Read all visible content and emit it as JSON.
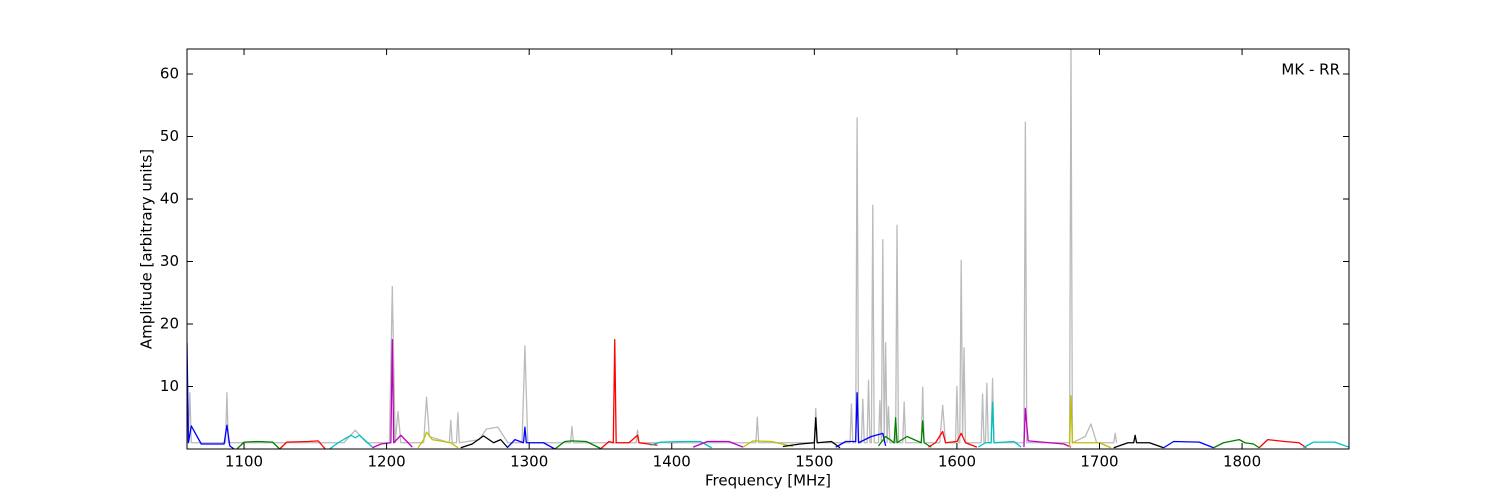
{
  "chart_data": {
    "type": "line",
    "xlabel": "Frequency [MHz]",
    "ylabel": "Amplitude [arbitrary units]",
    "annotation": "MK - RR",
    "xlim": [
      1060,
      1875
    ],
    "ylim": [
      0,
      64
    ],
    "xticks": [
      1100,
      1200,
      1300,
      1400,
      1500,
      1600,
      1700,
      1800
    ],
    "yticks": [
      10,
      20,
      30,
      40,
      50,
      60
    ],
    "series": [
      {
        "color": "#bbbbbb",
        "x": [
          1060,
          1061,
          1062,
          1063,
          1087,
          1088,
          1089,
          1170,
          1178,
          1186,
          1202,
          1204,
          1206,
          1208,
          1210,
          1226,
          1228,
          1230,
          1244,
          1245,
          1246,
          1249,
          1250,
          1251,
          1265,
          1270,
          1278,
          1285,
          1295,
          1297,
          1299,
          1329,
          1330,
          1331,
          1375,
          1376,
          1377,
          1459,
          1460,
          1461,
          1500,
          1501,
          1502,
          1525,
          1526,
          1527,
          1529,
          1530,
          1531,
          1533,
          1534,
          1535,
          1537,
          1538,
          1539,
          1540,
          1541,
          1542,
          1545,
          1546,
          1547,
          1548,
          1549,
          1550,
          1551,
          1552,
          1553,
          1557,
          1558,
          1559,
          1562,
          1563,
          1564,
          1575,
          1576,
          1577,
          1588,
          1590,
          1592,
          1599,
          1600,
          1601,
          1602,
          1603,
          1604,
          1605,
          1606,
          1617,
          1618,
          1619,
          1620,
          1621,
          1622,
          1624,
          1625,
          1626,
          1647,
          1648,
          1649,
          1679,
          1680,
          1681,
          1690,
          1694,
          1698,
          1710,
          1711,
          1712
        ],
        "values": [
          1,
          2,
          9,
          1,
          1,
          9,
          1,
          1,
          3,
          1,
          1,
          26,
          1,
          6,
          1,
          1,
          8.3,
          2,
          1,
          4.6,
          1,
          1,
          5.8,
          1,
          1.5,
          3.2,
          3.5,
          1,
          1,
          16.5,
          1,
          1,
          3.6,
          1,
          1,
          3,
          1,
          1,
          5.1,
          1,
          1,
          6.5,
          1,
          1,
          7.2,
          1,
          1,
          53,
          1,
          1,
          8,
          1,
          1,
          11,
          1,
          1,
          39,
          1,
          1,
          7.8,
          1,
          33.5,
          1,
          17,
          1,
          6.8,
          1,
          1,
          35.8,
          1,
          1,
          7.5,
          1,
          1,
          9.9,
          1,
          1,
          7,
          1,
          1,
          10,
          1,
          1,
          30.2,
          2,
          16.2,
          1,
          1,
          8.8,
          1,
          1,
          10.5,
          1,
          1,
          11.3,
          1,
          1,
          52.3,
          1,
          1,
          64,
          1,
          2,
          4,
          1,
          1,
          2.5,
          1
        ]
      },
      {
        "color": "#0000ff",
        "x": [
          1060,
          1061,
          1063,
          1070,
          1086,
          1088,
          1090,
          1093
        ],
        "values": [
          17,
          1,
          3.7,
          0.8,
          0.8,
          3.8,
          0.5,
          0
        ]
      },
      {
        "color": "#008000",
        "x": [
          1095,
          1100,
          1110,
          1120,
          1125
        ],
        "values": [
          0,
          1.1,
          1.2,
          1.1,
          0
        ]
      },
      {
        "color": "#ff0000",
        "x": [
          1125,
          1130,
          1145,
          1152,
          1157
        ],
        "values": [
          0,
          1.1,
          1.2,
          1.3,
          0
        ]
      },
      {
        "color": "#00bfbf",
        "x": [
          1160,
          1166,
          1175,
          1178,
          1181,
          1190
        ],
        "values": [
          0,
          1,
          2.2,
          1.8,
          2.2,
          0.3
        ]
      },
      {
        "color": "#bf00bf",
        "x": [
          1190,
          1196,
          1203,
          1204,
          1205,
          1210,
          1218
        ],
        "values": [
          0.2,
          0.8,
          1,
          17.5,
          1,
          2.2,
          0.3
        ]
      },
      {
        "color": "#bfbf00",
        "x": [
          1222,
          1226,
          1228,
          1232,
          1245,
          1250
        ],
        "values": [
          0.2,
          1.5,
          2.7,
          1.5,
          1,
          0.2
        ]
      },
      {
        "color": "#000000",
        "x": [
          1252,
          1260,
          1268,
          1275,
          1280,
          1285
        ],
        "values": [
          0.2,
          0.8,
          2.1,
          1,
          1.5,
          0.2
        ]
      },
      {
        "color": "#0000ff",
        "x": [
          1285,
          1290,
          1296,
          1297,
          1298,
          1310,
          1318
        ],
        "values": [
          0.3,
          1.5,
          1,
          3.5,
          1,
          1,
          0
        ]
      },
      {
        "color": "#008000",
        "x": [
          1318,
          1325,
          1330,
          1340,
          1350
        ],
        "values": [
          0,
          1.2,
          1.3,
          1.2,
          0.1
        ]
      },
      {
        "color": "#ff0000",
        "x": [
          1350,
          1356,
          1359,
          1360,
          1361,
          1370,
          1376,
          1377,
          1390
        ],
        "values": [
          0,
          1.2,
          1,
          17.5,
          1,
          1,
          2.2,
          1,
          0.6
        ]
      },
      {
        "color": "#00bfbf",
        "x": [
          1385,
          1392,
          1410,
          1420,
          1428
        ],
        "values": [
          0.6,
          1.1,
          1.2,
          1.2,
          0.2
        ]
      },
      {
        "color": "#bf00bf",
        "x": [
          1415,
          1425,
          1440,
          1450
        ],
        "values": [
          0.3,
          1.2,
          1.2,
          0.3
        ]
      },
      {
        "color": "#bfbf00",
        "x": [
          1450,
          1457,
          1470,
          1485
        ],
        "values": [
          0.3,
          1.3,
          1.2,
          0.4
        ]
      },
      {
        "color": "#000000",
        "x": [
          1478,
          1490,
          1500,
          1501,
          1502,
          1512,
          1518
        ],
        "values": [
          0.4,
          0.8,
          1,
          5,
          1,
          1.2,
          0.2
        ]
      },
      {
        "color": "#0000ff",
        "x": [
          1515,
          1522,
          1529,
          1530,
          1531,
          1540,
          1548,
          1550
        ],
        "values": [
          0.3,
          1.2,
          1.2,
          9,
          1,
          2,
          2.5,
          0.5
        ]
      },
      {
        "color": "#008000",
        "x": [
          1545,
          1550,
          1556,
          1557,
          1558,
          1565,
          1575,
          1576,
          1577,
          1582
        ],
        "values": [
          0.5,
          2,
          1,
          5,
          1,
          2,
          1,
          4.5,
          1,
          0.3
        ]
      },
      {
        "color": "#ff0000",
        "x": [
          1580,
          1585,
          1590,
          1592,
          1600,
          1603,
          1606,
          1614
        ],
        "values": [
          0.3,
          1,
          2.8,
          1,
          1.2,
          2.5,
          1,
          0.3
        ]
      },
      {
        "color": "#00bfbf",
        "x": [
          1615,
          1620,
          1624,
          1625,
          1626,
          1640,
          1645
        ],
        "values": [
          0.3,
          1,
          1,
          7.5,
          1,
          1.2,
          0.3
        ]
      },
      {
        "color": "#bf00bf",
        "x": [
          1647,
          1648,
          1650,
          1665,
          1675,
          1680
        ],
        "values": [
          0.3,
          6.5,
          1.3,
          1,
          0.8,
          0.3
        ]
      },
      {
        "color": "#bfbf00",
        "x": [
          1679,
          1680,
          1681,
          1685,
          1700,
          1708
        ],
        "values": [
          0.3,
          8.5,
          1,
          1,
          1,
          0.2
        ]
      },
      {
        "color": "#000000",
        "x": [
          1710,
          1720,
          1724,
          1725,
          1726,
          1735,
          1745
        ],
        "values": [
          0.2,
          1,
          1,
          2.2,
          1,
          1,
          0.2
        ]
      },
      {
        "color": "#0000ff",
        "x": [
          1745,
          1752,
          1770,
          1780
        ],
        "values": [
          0.2,
          1.2,
          1.1,
          0.2
        ]
      },
      {
        "color": "#008000",
        "x": [
          1780,
          1787,
          1798,
          1802,
          1808,
          1812
        ],
        "values": [
          0.2,
          1,
          1.5,
          1,
          0.8,
          0.2
        ]
      },
      {
        "color": "#ff0000",
        "x": [
          1812,
          1818,
          1830,
          1840,
          1845
        ],
        "values": [
          0.2,
          1.5,
          1.2,
          1,
          0.2
        ]
      },
      {
        "color": "#00bfbf",
        "x": [
          1843,
          1850,
          1865,
          1875
        ],
        "values": [
          0.2,
          1.1,
          1.1,
          0.3
        ]
      }
    ]
  }
}
